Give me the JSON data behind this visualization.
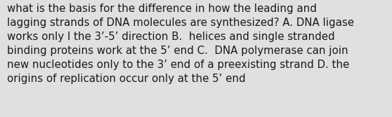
{
  "lines": [
    "what is the basis for the difference in how the leading and",
    "lagging strands of DNA molecules are synthesized? A. DNA ligase",
    "works only I the 3’-5’ direction B.  helices and single stranded",
    "binding proteins work at the 5’ end C.  DNA polymerase can join",
    "new nucleotides only to the 3’ end of a preexisting strand D. the",
    "origins of replication occur only at the 5’ end"
  ],
  "background_color": "#e0e0e0",
  "text_color": "#1a1a1a",
  "font_size": 10.8,
  "fig_width": 5.58,
  "fig_height": 1.67,
  "dpi": 100
}
